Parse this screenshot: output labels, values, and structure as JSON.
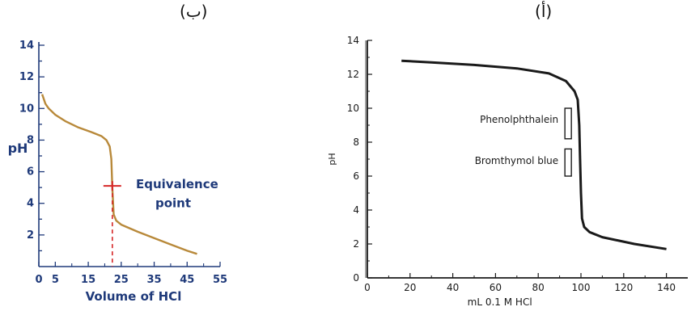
{
  "panels": {
    "left_label": "(ب)",
    "right_label": "(أ)"
  },
  "colors": {
    "left_axis": "#1f3a7a",
    "left_curve": "#b8893a",
    "equivalence_marker": "#d62728",
    "right_ink": "#1a1a1a"
  },
  "chart_data": [
    {
      "type": "line",
      "panel": "ب",
      "xlabel": "Volume of HCl",
      "ylabel": "pH",
      "xlim": [
        0,
        55
      ],
      "ylim": [
        0,
        14
      ],
      "xticks": [
        0,
        5,
        15,
        25,
        35,
        45,
        55
      ],
      "xtick_labels": [
        "0",
        "5",
        "15",
        "25",
        "35",
        "45",
        "55"
      ],
      "yticks": [
        2,
        4,
        6,
        8,
        10,
        12,
        14
      ],
      "ytick_labels": [
        "2",
        "4",
        "6",
        "8",
        "10",
        "12",
        "14"
      ],
      "grid": false,
      "series": [
        {
          "x": [
            1,
            2,
            3,
            5,
            8,
            12,
            16,
            19,
            20.5,
            21.5,
            22,
            22.3,
            22.7,
            23.5,
            25,
            30,
            35,
            40,
            45,
            48
          ],
          "y": [
            10.9,
            10.3,
            10.0,
            9.6,
            9.2,
            8.8,
            8.5,
            8.25,
            8.0,
            7.6,
            6.8,
            5.0,
            3.3,
            2.9,
            2.65,
            2.2,
            1.8,
            1.4,
            1.0,
            0.8
          ]
        }
      ],
      "annotations": [
        {
          "text": "Equivalence",
          "x": 22.3,
          "y": 5.1
        },
        {
          "text": "point",
          "x": 22.3,
          "y": 5.1
        }
      ],
      "equivalence_point": {
        "x": 22.3,
        "y": 5.1
      }
    },
    {
      "type": "line",
      "panel": "أ",
      "xlabel": "mL 0.1 M HCl",
      "ylabel": "pH",
      "xlim": [
        0,
        150
      ],
      "ylim": [
        0,
        14
      ],
      "xticks": [
        0,
        20,
        40,
        60,
        80,
        100,
        120,
        140
      ],
      "xtick_labels": [
        "0",
        "20",
        "40",
        "60",
        "80",
        "100",
        "120",
        "140"
      ],
      "yticks": [
        0,
        2,
        4,
        6,
        8,
        10,
        12,
        14
      ],
      "ytick_labels": [
        "0",
        "2",
        "4",
        "6",
        "8",
        "10",
        "12",
        "14"
      ],
      "grid": false,
      "series": [
        {
          "x": [
            16,
            30,
            50,
            70,
            85,
            93,
            97,
            98.5,
            99.2,
            99.6,
            100,
            100.5,
            101.5,
            104,
            110,
            125,
            140
          ],
          "y": [
            12.8,
            12.7,
            12.55,
            12.35,
            12.05,
            11.6,
            11.0,
            10.5,
            9.0,
            7.0,
            5.0,
            3.5,
            3.0,
            2.7,
            2.4,
            2.0,
            1.7
          ]
        }
      ],
      "indicators": [
        {
          "name": "Phenolphthalein",
          "ph_low": 8.2,
          "ph_high": 10.0,
          "x": 92
        },
        {
          "name": "Bromthymol blue",
          "ph_low": 6.0,
          "ph_high": 7.6,
          "x": 92
        }
      ]
    }
  ]
}
